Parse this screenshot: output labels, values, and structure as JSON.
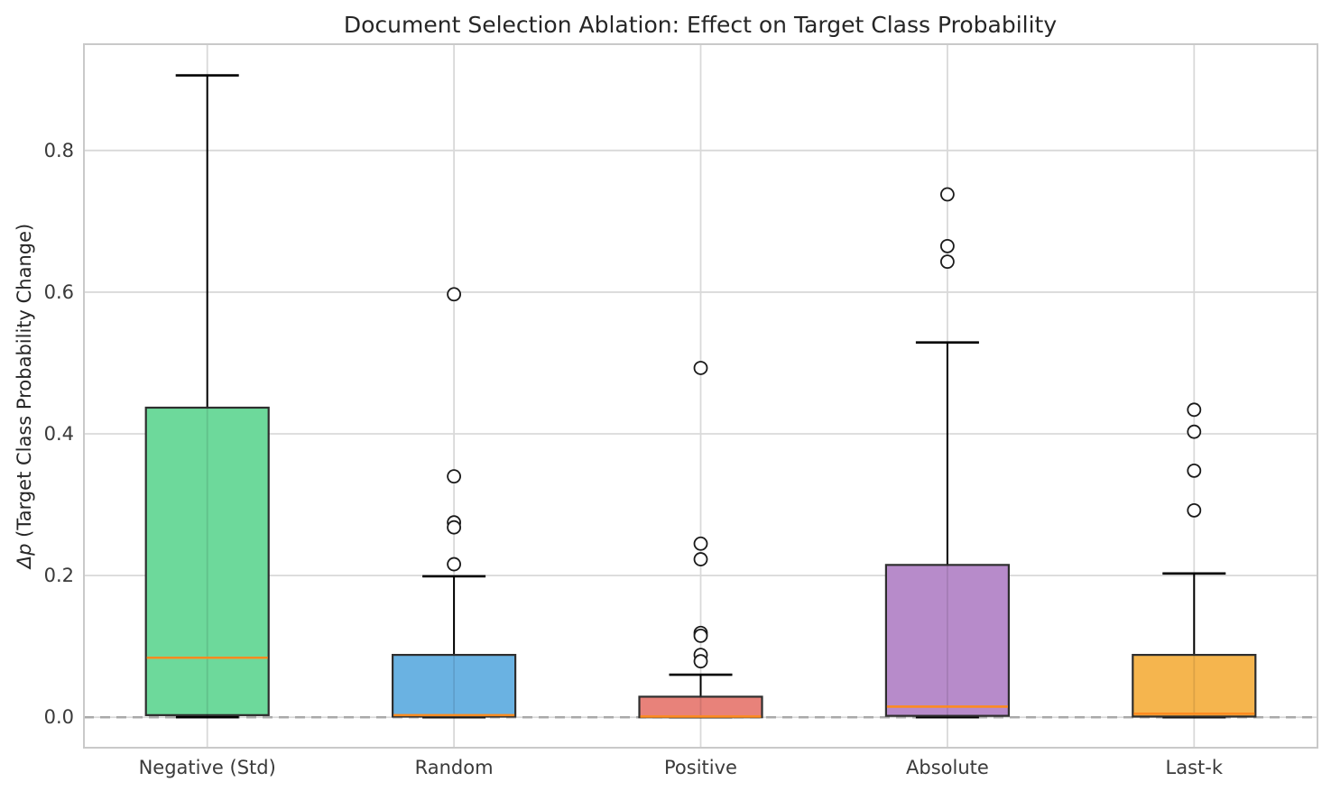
{
  "chart_data": {
    "type": "boxplot",
    "title": "Document Selection Ablation: Effect on Target Class Probability",
    "ylabel": "Δp (Target Class Probability Change)",
    "ylabel_math": "Δp",
    "ylabel_rest": " (Target Class Probability Change)",
    "xlabel": "",
    "yticks": [
      0.0,
      0.2,
      0.4,
      0.6,
      0.8
    ],
    "ylim": [
      -0.043,
      0.95
    ],
    "grid": true,
    "legend_position": "none",
    "zero_line": {
      "value": 0.0,
      "style": "dashed",
      "color": "#a9a9a9"
    },
    "categories": [
      "Negative (Std)",
      "Random",
      "Positive",
      "Absolute",
      "Last-k"
    ],
    "boxes": [
      {
        "label": "Negative (Std)",
        "fill_color": "#6dd99b",
        "q1": 0.003,
        "median": 0.084,
        "q3": 0.437,
        "whisker_low": 0.0,
        "whisker_high": 0.906,
        "outliers": []
      },
      {
        "label": "Random",
        "fill_color": "#6ab2e2",
        "q1": 0.001,
        "median": 0.003,
        "q3": 0.088,
        "whisker_low": 0.0,
        "whisker_high": 0.199,
        "outliers": [
          0.597,
          0.34,
          0.275,
          0.268,
          0.216
        ]
      },
      {
        "label": "Positive",
        "fill_color": "#e8827a",
        "q1": 0.0,
        "median": 0.001,
        "q3": 0.029,
        "whisker_low": 0.0,
        "whisker_high": 0.06,
        "outliers": [
          0.493,
          0.245,
          0.223,
          0.119,
          0.115,
          0.088,
          0.079
        ]
      },
      {
        "label": "Absolute",
        "fill_color": "#b78bca",
        "q1": 0.002,
        "median": 0.015,
        "q3": 0.215,
        "whisker_low": 0.0,
        "whisker_high": 0.529,
        "outliers": [
          0.738,
          0.665,
          0.643
        ]
      },
      {
        "label": "Last-k",
        "fill_color": "#f5b54e",
        "q1": 0.001,
        "median": 0.005,
        "q3": 0.088,
        "whisker_low": 0.0,
        "whisker_high": 0.203,
        "outliers": [
          0.434,
          0.403,
          0.348,
          0.292
        ]
      }
    ],
    "style": {
      "median_color": "#fd8b20",
      "box_edge_color": "#2e2e2e",
      "whisker_color": "#000000",
      "outlier_edge_color": "#1a1a1a",
      "grid_color": "#d9d9d9",
      "spine_color": "#c9c9c9",
      "tick_label_color": "#3a3a3a"
    }
  }
}
